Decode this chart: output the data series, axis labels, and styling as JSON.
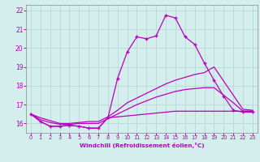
{
  "xlabel": "Windchill (Refroidissement éolien,°C)",
  "background_color": "#d4eeee",
  "grid_color": "#b8d8d8",
  "line_color": "#bb00bb",
  "x_hours": [
    0,
    1,
    2,
    3,
    4,
    5,
    6,
    7,
    8,
    9,
    10,
    11,
    12,
    13,
    14,
    15,
    16,
    17,
    18,
    19,
    20,
    21,
    22,
    23
  ],
  "y_actual": [
    16.5,
    16.1,
    15.85,
    15.85,
    15.9,
    15.85,
    15.75,
    15.75,
    16.3,
    18.4,
    19.8,
    20.6,
    20.5,
    20.65,
    21.75,
    21.6,
    20.6,
    20.2,
    19.2,
    18.3,
    17.45,
    16.7,
    16.6,
    16.6
  ],
  "y_line2": [
    16.5,
    16.3,
    16.15,
    16.0,
    16.0,
    16.05,
    16.1,
    16.1,
    16.35,
    16.7,
    17.1,
    17.35,
    17.6,
    17.85,
    18.1,
    18.3,
    18.45,
    18.6,
    18.7,
    19.0,
    18.25,
    17.5,
    16.75,
    16.7
  ],
  "y_line3": [
    16.5,
    16.2,
    16.05,
    15.95,
    15.95,
    16.0,
    16.0,
    16.0,
    16.25,
    16.5,
    16.75,
    17.0,
    17.2,
    17.4,
    17.55,
    17.7,
    17.8,
    17.85,
    17.9,
    17.9,
    17.5,
    17.1,
    16.65,
    16.65
  ],
  "y_line4": [
    16.5,
    16.1,
    15.85,
    15.85,
    15.9,
    15.85,
    15.75,
    15.75,
    16.3,
    16.35,
    16.4,
    16.45,
    16.5,
    16.55,
    16.6,
    16.65,
    16.65,
    16.65,
    16.65,
    16.65,
    16.65,
    16.65,
    16.65,
    16.65
  ],
  "ylim": [
    15.5,
    22.3
  ],
  "yticks": [
    16,
    17,
    18,
    19,
    20,
    21,
    22
  ],
  "xlim": [
    -0.5,
    23.5
  ],
  "xticks": [
    0,
    1,
    2,
    3,
    4,
    5,
    6,
    7,
    8,
    9,
    10,
    11,
    12,
    13,
    14,
    15,
    16,
    17,
    18,
    19,
    20,
    21,
    22,
    23
  ]
}
